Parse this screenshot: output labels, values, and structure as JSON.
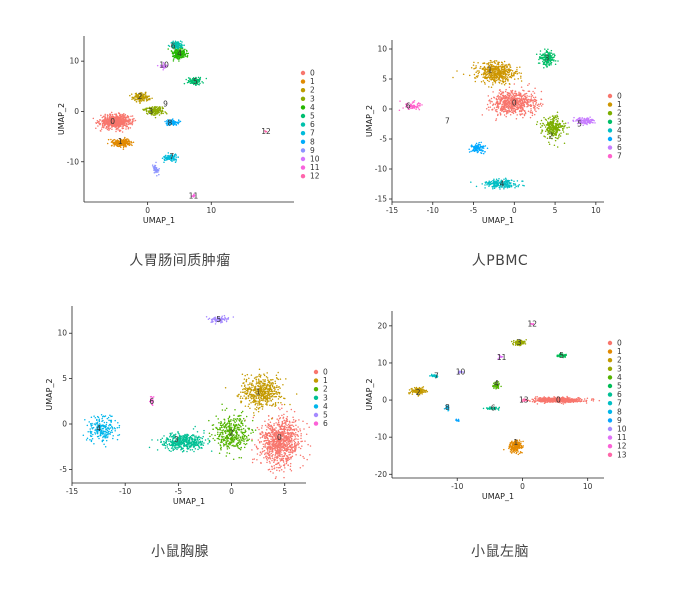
{
  "chart_data": [
    {
      "type": "scatter",
      "caption": "人胃肠间质肿瘤",
      "xlabel": "UMAP_1",
      "ylabel": "UMAP_2",
      "xlim": [
        -10,
        23
      ],
      "ylim": [
        -18,
        15
      ],
      "xticks": [
        0,
        10
      ],
      "yticks": [
        -10,
        0,
        10
      ],
      "legend_position": "right",
      "colors": [
        "#F8766D",
        "#E18A00",
        "#BE9C00",
        "#8CAB00",
        "#24B700",
        "#00BE70",
        "#00C1AB",
        "#00BBDA",
        "#00ACFC",
        "#8B93FF",
        "#D575FE",
        "#F962DD",
        "#FF65AC"
      ],
      "clusters": [
        {
          "name": "0",
          "cx": -5.0,
          "cy": -2.0,
          "sx": 2.2,
          "sy": 1.2,
          "n": 700
        },
        {
          "name": "1",
          "cx": -4.0,
          "cy": -6.2,
          "sx": 1.3,
          "sy": 0.7,
          "n": 230
        },
        {
          "name": "2",
          "cx": -1.0,
          "cy": 2.8,
          "sx": 1.2,
          "sy": 0.7,
          "n": 160
        },
        {
          "name": "3",
          "cx": 1.0,
          "cy": 0.2,
          "sx": 1.5,
          "sy": 0.8,
          "n": 160
        },
        {
          "name": "4",
          "cx": 5.0,
          "cy": 11.5,
          "sx": 1.2,
          "sy": 1.0,
          "n": 180
        },
        {
          "name": "5",
          "cx": 7.5,
          "cy": 6.0,
          "sx": 1.0,
          "sy": 0.7,
          "n": 110
        },
        {
          "name": "6",
          "cx": 4.5,
          "cy": 13.2,
          "sx": 0.9,
          "sy": 0.6,
          "n": 110
        },
        {
          "name": "7",
          "cx": 3.6,
          "cy": -9.2,
          "sx": 1.0,
          "sy": 0.6,
          "n": 90
        },
        {
          "name": "8",
          "cx": 3.8,
          "cy": -2.2,
          "sx": 1.0,
          "sy": 0.5,
          "n": 90
        },
        {
          "name": "9",
          "cx": 1.2,
          "cy": -11.5,
          "sx": 0.4,
          "sy": 0.9,
          "n": 40
        },
        {
          "name": "10",
          "cx": 2.6,
          "cy": 9.0,
          "sx": 0.5,
          "sy": 0.4,
          "n": 30
        },
        {
          "name": "11",
          "cx": 7.2,
          "cy": -16.8,
          "sx": 0.25,
          "sy": 0.25,
          "n": 12
        },
        {
          "name": "12",
          "cx": 18.6,
          "cy": -4.0,
          "sx": 0.2,
          "sy": 0.2,
          "n": 6
        }
      ],
      "labels": [
        {
          "text": "0",
          "x": -5.5,
          "y": -2.0
        },
        {
          "text": "1",
          "x": -4.3,
          "y": -6.0
        },
        {
          "text": "2",
          "x": -1.2,
          "y": 3.0
        },
        {
          "text": "3",
          "x": 0.5,
          "y": 0.0
        },
        {
          "text": "4",
          "x": 5.0,
          "y": 11.5
        },
        {
          "text": "5",
          "x": 7.5,
          "y": 6.0
        },
        {
          "text": "6",
          "x": 4.0,
          "y": 13.0
        },
        {
          "text": "7",
          "x": 3.8,
          "y": -9.0
        },
        {
          "text": "8",
          "x": 3.5,
          "y": -2.3
        },
        {
          "text": "9",
          "x": 2.8,
          "y": 1.5
        },
        {
          "text": "10",
          "x": 2.6,
          "y": 9.2
        },
        {
          "text": "11",
          "x": 7.2,
          "y": -16.8
        },
        {
          "text": "12",
          "x": 18.6,
          "y": -4.0
        }
      ]
    },
    {
      "type": "scatter",
      "caption": "人PBMC",
      "xlabel": "UMAP_1",
      "ylabel": "UMAP_2",
      "xlim": [
        -15,
        11
      ],
      "ylim": [
        -15.5,
        11.5
      ],
      "xticks": [
        -15,
        -10,
        -5,
        0,
        5,
        10
      ],
      "yticks": [
        -15,
        -10,
        -5,
        0,
        5,
        10
      ],
      "legend_position": "right",
      "colors": [
        "#F8766D",
        "#CD9600",
        "#7CAE00",
        "#00BE67",
        "#00BFC4",
        "#00A9FF",
        "#C77CFF",
        "#FF61CC"
      ],
      "clusters": [
        {
          "name": "0",
          "cx": 0.0,
          "cy": 1.0,
          "sx": 2.5,
          "sy": 1.8,
          "n": 650
        },
        {
          "name": "1",
          "cx": -2.2,
          "cy": 6.0,
          "sx": 2.2,
          "sy": 1.5,
          "n": 500
        },
        {
          "name": "2",
          "cx": 4.8,
          "cy": -3.0,
          "sx": 1.2,
          "sy": 1.8,
          "n": 280
        },
        {
          "name": "3",
          "cx": 4.0,
          "cy": 8.5,
          "sx": 0.9,
          "sy": 1.2,
          "n": 170
        },
        {
          "name": "4",
          "cx": -1.5,
          "cy": -12.5,
          "sx": 2.0,
          "sy": 0.7,
          "n": 200
        },
        {
          "name": "5",
          "cx": -4.5,
          "cy": -6.5,
          "sx": 0.8,
          "sy": 0.8,
          "n": 100
        },
        {
          "name": "6",
          "cx": 8.5,
          "cy": -2.0,
          "sx": 1.2,
          "sy": 0.5,
          "n": 120
        },
        {
          "name": "7",
          "cx": -12.5,
          "cy": 0.5,
          "sx": 1.0,
          "sy": 0.6,
          "n": 70
        }
      ],
      "labels": [
        {
          "text": "0",
          "x": 0.0,
          "y": 1.0
        },
        {
          "text": "1",
          "x": -3.0,
          "y": 6.5
        },
        {
          "text": "2",
          "x": 4.5,
          "y": -4.5
        },
        {
          "text": "3",
          "x": 4.0,
          "y": 8.5
        },
        {
          "text": "4",
          "x": -1.5,
          "y": -12.5
        },
        {
          "text": "5",
          "x": 8.0,
          "y": -2.5
        },
        {
          "text": "6",
          "x": -13.0,
          "y": 0.5
        },
        {
          "text": "7",
          "x": -8.2,
          "y": -2.0
        }
      ]
    },
    {
      "type": "scatter",
      "caption": "小鼠胸腺",
      "xlabel": "UMAP_1",
      "ylabel": "UMAP_2",
      "xlim": [
        -15,
        7
      ],
      "ylim": [
        -6.5,
        13
      ],
      "xticks": [
        -15,
        -10,
        -5,
        0,
        5
      ],
      "yticks": [
        -5,
        0,
        5,
        10
      ],
      "legend_position": "right",
      "colors": [
        "#F8766D",
        "#C49A00",
        "#53B400",
        "#00C094",
        "#00B6EB",
        "#A58AFF",
        "#FB61D7"
      ],
      "clusters": [
        {
          "name": "0",
          "cx": 4.5,
          "cy": -2.0,
          "sx": 1.8,
          "sy": 2.5,
          "n": 900
        },
        {
          "name": "1",
          "cx": 2.8,
          "cy": 3.5,
          "sx": 1.8,
          "sy": 1.6,
          "n": 500
        },
        {
          "name": "2",
          "cx": 0.0,
          "cy": -1.0,
          "sx": 1.4,
          "sy": 1.8,
          "n": 400
        },
        {
          "name": "3",
          "cx": -4.5,
          "cy": -2.0,
          "sx": 1.8,
          "sy": 0.9,
          "n": 420
        },
        {
          "name": "4",
          "cx": -12.2,
          "cy": -0.5,
          "sx": 1.2,
          "sy": 1.2,
          "n": 220
        },
        {
          "name": "5",
          "cx": -1.2,
          "cy": 11.5,
          "sx": 0.8,
          "sy": 0.3,
          "n": 80
        },
        {
          "name": "6",
          "cx": -7.5,
          "cy": 2.5,
          "sx": 0.15,
          "sy": 0.5,
          "n": 25
        }
      ],
      "labels": [
        {
          "text": "0",
          "x": 4.5,
          "y": -1.5
        },
        {
          "text": "1",
          "x": 2.5,
          "y": 3.5
        },
        {
          "text": "2",
          "x": 0.0,
          "y": -1.0
        },
        {
          "text": "3",
          "x": -5.2,
          "y": -1.7
        },
        {
          "text": "4",
          "x": -12.5,
          "y": -0.5
        },
        {
          "text": "5",
          "x": -1.2,
          "y": 11.5
        },
        {
          "text": "6",
          "x": -7.5,
          "y": 2.5
        }
      ]
    },
    {
      "type": "scatter",
      "caption": "小鼠左脑",
      "xlabel": "UMAP_1",
      "ylabel": "UMAP_2",
      "xlim": [
        -20,
        12.5
      ],
      "ylim": [
        -21,
        24
      ],
      "xticks": [
        -10,
        0,
        10
      ],
      "yticks": [
        -20,
        -10,
        0,
        10,
        20
      ],
      "legend_position": "right",
      "colors": [
        "#F8766D",
        "#E38900",
        "#C49A00",
        "#99A800",
        "#53B400",
        "#00BC56",
        "#00C094",
        "#00BFC4",
        "#00B6EB",
        "#06A4FF",
        "#A58AFF",
        "#DF70F8",
        "#FB61D7",
        "#FF66A8"
      ],
      "clusters": [
        {
          "name": "0",
          "cx": 5.5,
          "cy": 0.0,
          "sx": 3.2,
          "sy": 0.6,
          "n": 650
        },
        {
          "name": "1",
          "cx": -1.0,
          "cy": -12.5,
          "sx": 0.9,
          "sy": 1.6,
          "n": 200
        },
        {
          "name": "2",
          "cx": -16.0,
          "cy": 2.5,
          "sx": 1.1,
          "sy": 0.8,
          "n": 140
        },
        {
          "name": "3",
          "cx": -0.5,
          "cy": 15.5,
          "sx": 0.8,
          "sy": 0.6,
          "n": 100
        },
        {
          "name": "4",
          "cx": -4.0,
          "cy": 4.0,
          "sx": 0.4,
          "sy": 0.8,
          "n": 60
        },
        {
          "name": "5",
          "cx": 6.0,
          "cy": 12.0,
          "sx": 0.8,
          "sy": 0.4,
          "n": 50
        },
        {
          "name": "6",
          "cx": -4.5,
          "cy": -2.2,
          "sx": 1.0,
          "sy": 0.3,
          "n": 40
        },
        {
          "name": "7",
          "cx": -13.5,
          "cy": 6.5,
          "sx": 0.5,
          "sy": 0.3,
          "n": 30
        },
        {
          "name": "8",
          "cx": -11.5,
          "cy": -2.0,
          "sx": 0.3,
          "sy": 0.6,
          "n": 30
        },
        {
          "name": "9",
          "cx": -10.0,
          "cy": -5.5,
          "sx": 0.3,
          "sy": 0.3,
          "n": 10
        },
        {
          "name": "10",
          "cx": -9.5,
          "cy": 7.5,
          "sx": 0.4,
          "sy": 0.3,
          "n": 14
        },
        {
          "name": "11",
          "cx": -3.5,
          "cy": 11.5,
          "sx": 0.4,
          "sy": 0.4,
          "n": 14
        },
        {
          "name": "12",
          "cx": 1.5,
          "cy": 20.5,
          "sx": 0.3,
          "sy": 0.2,
          "n": 8
        },
        {
          "name": "13",
          "cx": 0.3,
          "cy": 0.0,
          "sx": 0.4,
          "sy": 0.3,
          "n": 20
        }
      ],
      "labels": [
        {
          "text": "0",
          "x": 5.5,
          "y": 0.0
        },
        {
          "text": "1",
          "x": -1.0,
          "y": -11.5
        },
        {
          "text": "2",
          "x": -16.0,
          "y": 2.0
        },
        {
          "text": "3",
          "x": -0.5,
          "y": 15.5
        },
        {
          "text": "4",
          "x": -4.0,
          "y": 4.5
        },
        {
          "text": "5",
          "x": 6.0,
          "y": 12.0
        },
        {
          "text": "6",
          "x": -4.5,
          "y": -2.2
        },
        {
          "text": "7",
          "x": -13.2,
          "y": 6.5
        },
        {
          "text": "8",
          "x": -11.5,
          "y": -2.0
        },
        {
          "text": "10",
          "x": -9.5,
          "y": 7.5
        },
        {
          "text": "11",
          "x": -3.2,
          "y": 11.5
        },
        {
          "text": "12",
          "x": 1.5,
          "y": 20.5
        },
        {
          "text": "13",
          "x": 0.2,
          "y": 0.0
        }
      ]
    }
  ]
}
